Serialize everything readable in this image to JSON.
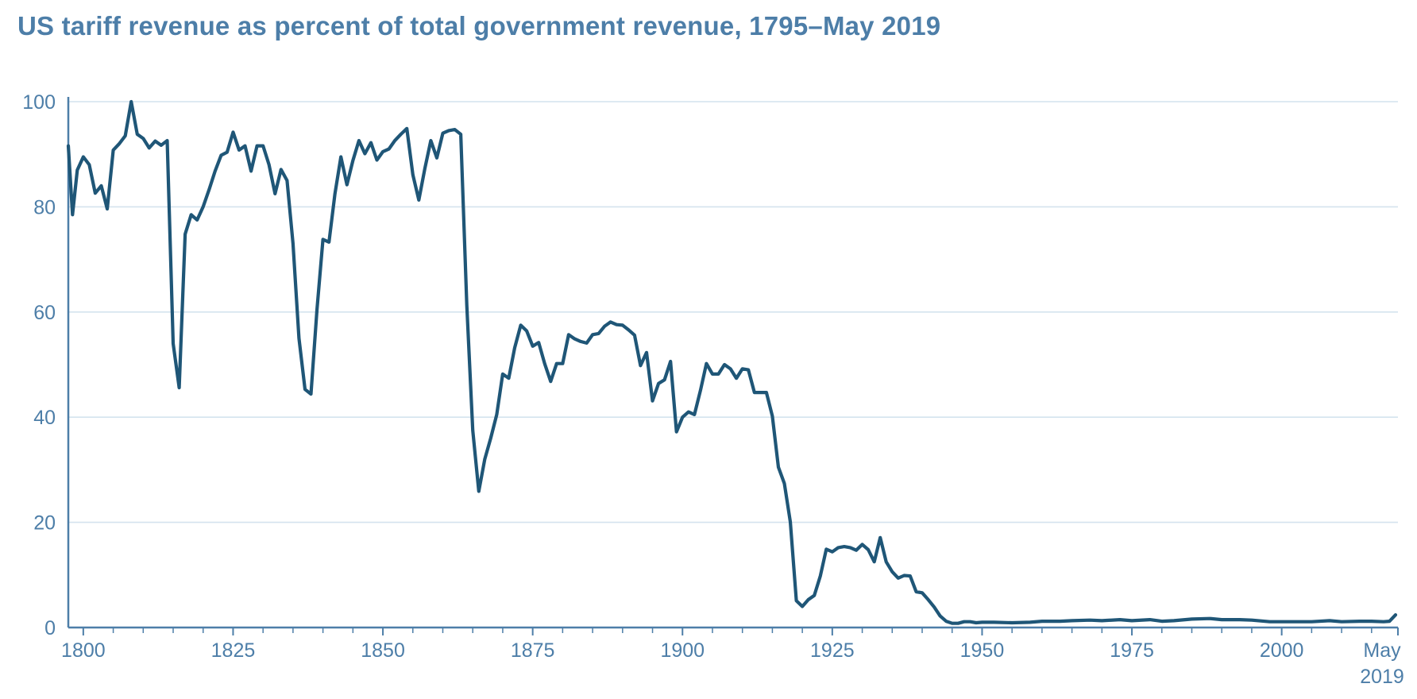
{
  "title": "US tariff revenue as percent of total government revenue, 1795–May 2019",
  "colors": {
    "title": "#4d7ea8",
    "line": "#1f5677",
    "grid": "#d4e3ee",
    "axis": "#4d7ea8",
    "tick_label": "#4d7ea8"
  },
  "chart_data": {
    "type": "line",
    "title": "US tariff revenue as percent of total government revenue, 1795–May 2019",
    "xlabel": "",
    "ylabel": "",
    "xlim": [
      1797.5,
      2019.4
    ],
    "ylim": [
      0,
      100
    ],
    "grid": true,
    "y_ticks": [
      0,
      20,
      40,
      60,
      80,
      100
    ],
    "x_ticks": [
      {
        "value": 1800,
        "label": "1800"
      },
      {
        "value": 1825,
        "label": "1825"
      },
      {
        "value": 1850,
        "label": "1850"
      },
      {
        "value": 1875,
        "label": "1875"
      },
      {
        "value": 1900,
        "label": "1900"
      },
      {
        "value": 1925,
        "label": "1925"
      },
      {
        "value": 2000,
        "label": "2000"
      }
    ],
    "x_ticks_colored": [
      {
        "value": 1950,
        "label": "1950"
      },
      {
        "value": 1975,
        "label": "1975"
      }
    ],
    "end_label": {
      "value": 2019.4,
      "line1": "May",
      "line2": "2019"
    },
    "series": [
      {
        "values": [
          [
            1797.5,
            91.6
          ],
          [
            1798.2,
            78.5
          ],
          [
            1799,
            87
          ],
          [
            1800,
            89.5
          ],
          [
            1801,
            88
          ],
          [
            1802,
            82.6
          ],
          [
            1803,
            84
          ],
          [
            1804,
            79.6
          ],
          [
            1805,
            90.8
          ],
          [
            1806,
            92
          ],
          [
            1807,
            93.5
          ],
          [
            1808,
            100
          ],
          [
            1809,
            93.8
          ],
          [
            1810,
            93
          ],
          [
            1811,
            91.2
          ],
          [
            1812,
            92.5
          ],
          [
            1813,
            91.7
          ],
          [
            1814,
            92.6
          ],
          [
            1815,
            54
          ],
          [
            1816,
            45.6
          ],
          [
            1817,
            74.8
          ],
          [
            1818,
            78.5
          ],
          [
            1819,
            77.5
          ],
          [
            1820,
            80
          ],
          [
            1821,
            83.3
          ],
          [
            1822,
            86.8
          ],
          [
            1823,
            89.8
          ],
          [
            1824,
            90.4
          ],
          [
            1825,
            94.2
          ],
          [
            1826,
            90.8
          ],
          [
            1827,
            91.6
          ],
          [
            1828,
            86.8
          ],
          [
            1829,
            91.6
          ],
          [
            1830,
            91.6
          ],
          [
            1831,
            88
          ],
          [
            1832,
            82.5
          ],
          [
            1833,
            87.1
          ],
          [
            1834,
            85
          ],
          [
            1835,
            73
          ],
          [
            1836,
            55
          ],
          [
            1837,
            45.3
          ],
          [
            1838,
            44.4
          ],
          [
            1839,
            60.5
          ],
          [
            1840,
            73.8
          ],
          [
            1841,
            73.3
          ],
          [
            1842,
            82.5
          ],
          [
            1843,
            89.5
          ],
          [
            1844,
            84.2
          ],
          [
            1845,
            88.8
          ],
          [
            1846,
            92.6
          ],
          [
            1847,
            90.1
          ],
          [
            1848,
            92.2
          ],
          [
            1849,
            88.9
          ],
          [
            1850,
            90.5
          ],
          [
            1851,
            91
          ],
          [
            1852,
            92.6
          ],
          [
            1853,
            93.8
          ],
          [
            1854,
            94.9
          ],
          [
            1855,
            86.1
          ],
          [
            1856,
            81.3
          ],
          [
            1857,
            87.3
          ],
          [
            1858,
            92.6
          ],
          [
            1859,
            89.3
          ],
          [
            1860,
            94
          ],
          [
            1861,
            94.5
          ],
          [
            1862,
            94.7
          ],
          [
            1863,
            93.8
          ],
          [
            1864,
            61.3
          ],
          [
            1865,
            37.5
          ],
          [
            1866,
            25.9
          ],
          [
            1867,
            32
          ],
          [
            1868,
            36
          ],
          [
            1869,
            40.5
          ],
          [
            1870,
            48.2
          ],
          [
            1871,
            47.4
          ],
          [
            1872,
            53.2
          ],
          [
            1873,
            57.5
          ],
          [
            1874,
            56.4
          ],
          [
            1875,
            53.5
          ],
          [
            1876,
            54.2
          ],
          [
            1877,
            50.2
          ],
          [
            1878,
            46.8
          ],
          [
            1879,
            50.2
          ],
          [
            1880,
            50.2
          ],
          [
            1881,
            55.7
          ],
          [
            1882,
            54.9
          ],
          [
            1883,
            54.4
          ],
          [
            1884,
            54.1
          ],
          [
            1885,
            55.7
          ],
          [
            1886,
            55.9
          ],
          [
            1887,
            57.3
          ],
          [
            1888,
            58.1
          ],
          [
            1889,
            57.6
          ],
          [
            1890,
            57.5
          ],
          [
            1891,
            56.6
          ],
          [
            1892,
            55.6
          ],
          [
            1893,
            49.8
          ],
          [
            1894,
            52.3
          ],
          [
            1895,
            43.1
          ],
          [
            1896,
            46.4
          ],
          [
            1897,
            47.1
          ],
          [
            1898,
            50.6
          ],
          [
            1899,
            37.2
          ],
          [
            1900,
            40
          ],
          [
            1901,
            41
          ],
          [
            1902,
            40.5
          ],
          [
            1903,
            45.1
          ],
          [
            1904,
            50.2
          ],
          [
            1905,
            48.2
          ],
          [
            1906,
            48.2
          ],
          [
            1907,
            50
          ],
          [
            1908,
            49.2
          ],
          [
            1909,
            47.4
          ],
          [
            1910,
            49.2
          ],
          [
            1911,
            49
          ],
          [
            1912,
            44.7
          ],
          [
            1913,
            44.7
          ],
          [
            1914,
            44.7
          ],
          [
            1915,
            40.2
          ],
          [
            1916,
            30.5
          ],
          [
            1917,
            27.4
          ],
          [
            1918,
            20.1
          ],
          [
            1919,
            5.1
          ],
          [
            1920,
            4
          ],
          [
            1921,
            5.3
          ],
          [
            1922,
            6.1
          ],
          [
            1923,
            9.8
          ],
          [
            1924,
            14.9
          ],
          [
            1925,
            14.4
          ],
          [
            1926,
            15.2
          ],
          [
            1927,
            15.4
          ],
          [
            1928,
            15.2
          ],
          [
            1929,
            14.7
          ],
          [
            1930,
            15.8
          ],
          [
            1931,
            14.8
          ],
          [
            1932,
            12.5
          ],
          [
            1933,
            17.1
          ],
          [
            1934,
            12.5
          ],
          [
            1935,
            10.6
          ],
          [
            1936,
            9.4
          ],
          [
            1937,
            9.9
          ],
          [
            1938,
            9.8
          ],
          [
            1939,
            6.8
          ],
          [
            1940,
            6.6
          ],
          [
            1941,
            5.3
          ],
          [
            1942,
            3.9
          ],
          [
            1943,
            2.2
          ],
          [
            1944,
            1.2
          ],
          [
            1945,
            0.8
          ],
          [
            1946,
            0.8
          ],
          [
            1947,
            1.1
          ],
          [
            1948,
            1.1
          ],
          [
            1949,
            0.9
          ],
          [
            1950,
            1
          ],
          [
            1952,
            1
          ],
          [
            1955,
            0.9
          ],
          [
            1958,
            1
          ],
          [
            1960,
            1.2
          ],
          [
            1963,
            1.2
          ],
          [
            1965,
            1.3
          ],
          [
            1968,
            1.4
          ],
          [
            1970,
            1.3
          ],
          [
            1973,
            1.5
          ],
          [
            1975,
            1.3
          ],
          [
            1978,
            1.5
          ],
          [
            1980,
            1.2
          ],
          [
            1982,
            1.3
          ],
          [
            1985,
            1.6
          ],
          [
            1988,
            1.7
          ],
          [
            1990,
            1.5
          ],
          [
            1993,
            1.5
          ],
          [
            1995,
            1.4
          ],
          [
            1998,
            1.1
          ],
          [
            2000,
            1.1
          ],
          [
            2003,
            1.1
          ],
          [
            2005,
            1.1
          ],
          [
            2008,
            1.3
          ],
          [
            2010,
            1.1
          ],
          [
            2013,
            1.2
          ],
          [
            2015,
            1.2
          ],
          [
            2017,
            1.1
          ],
          [
            2018,
            1.2
          ],
          [
            2019,
            2.4
          ]
        ]
      }
    ]
  }
}
